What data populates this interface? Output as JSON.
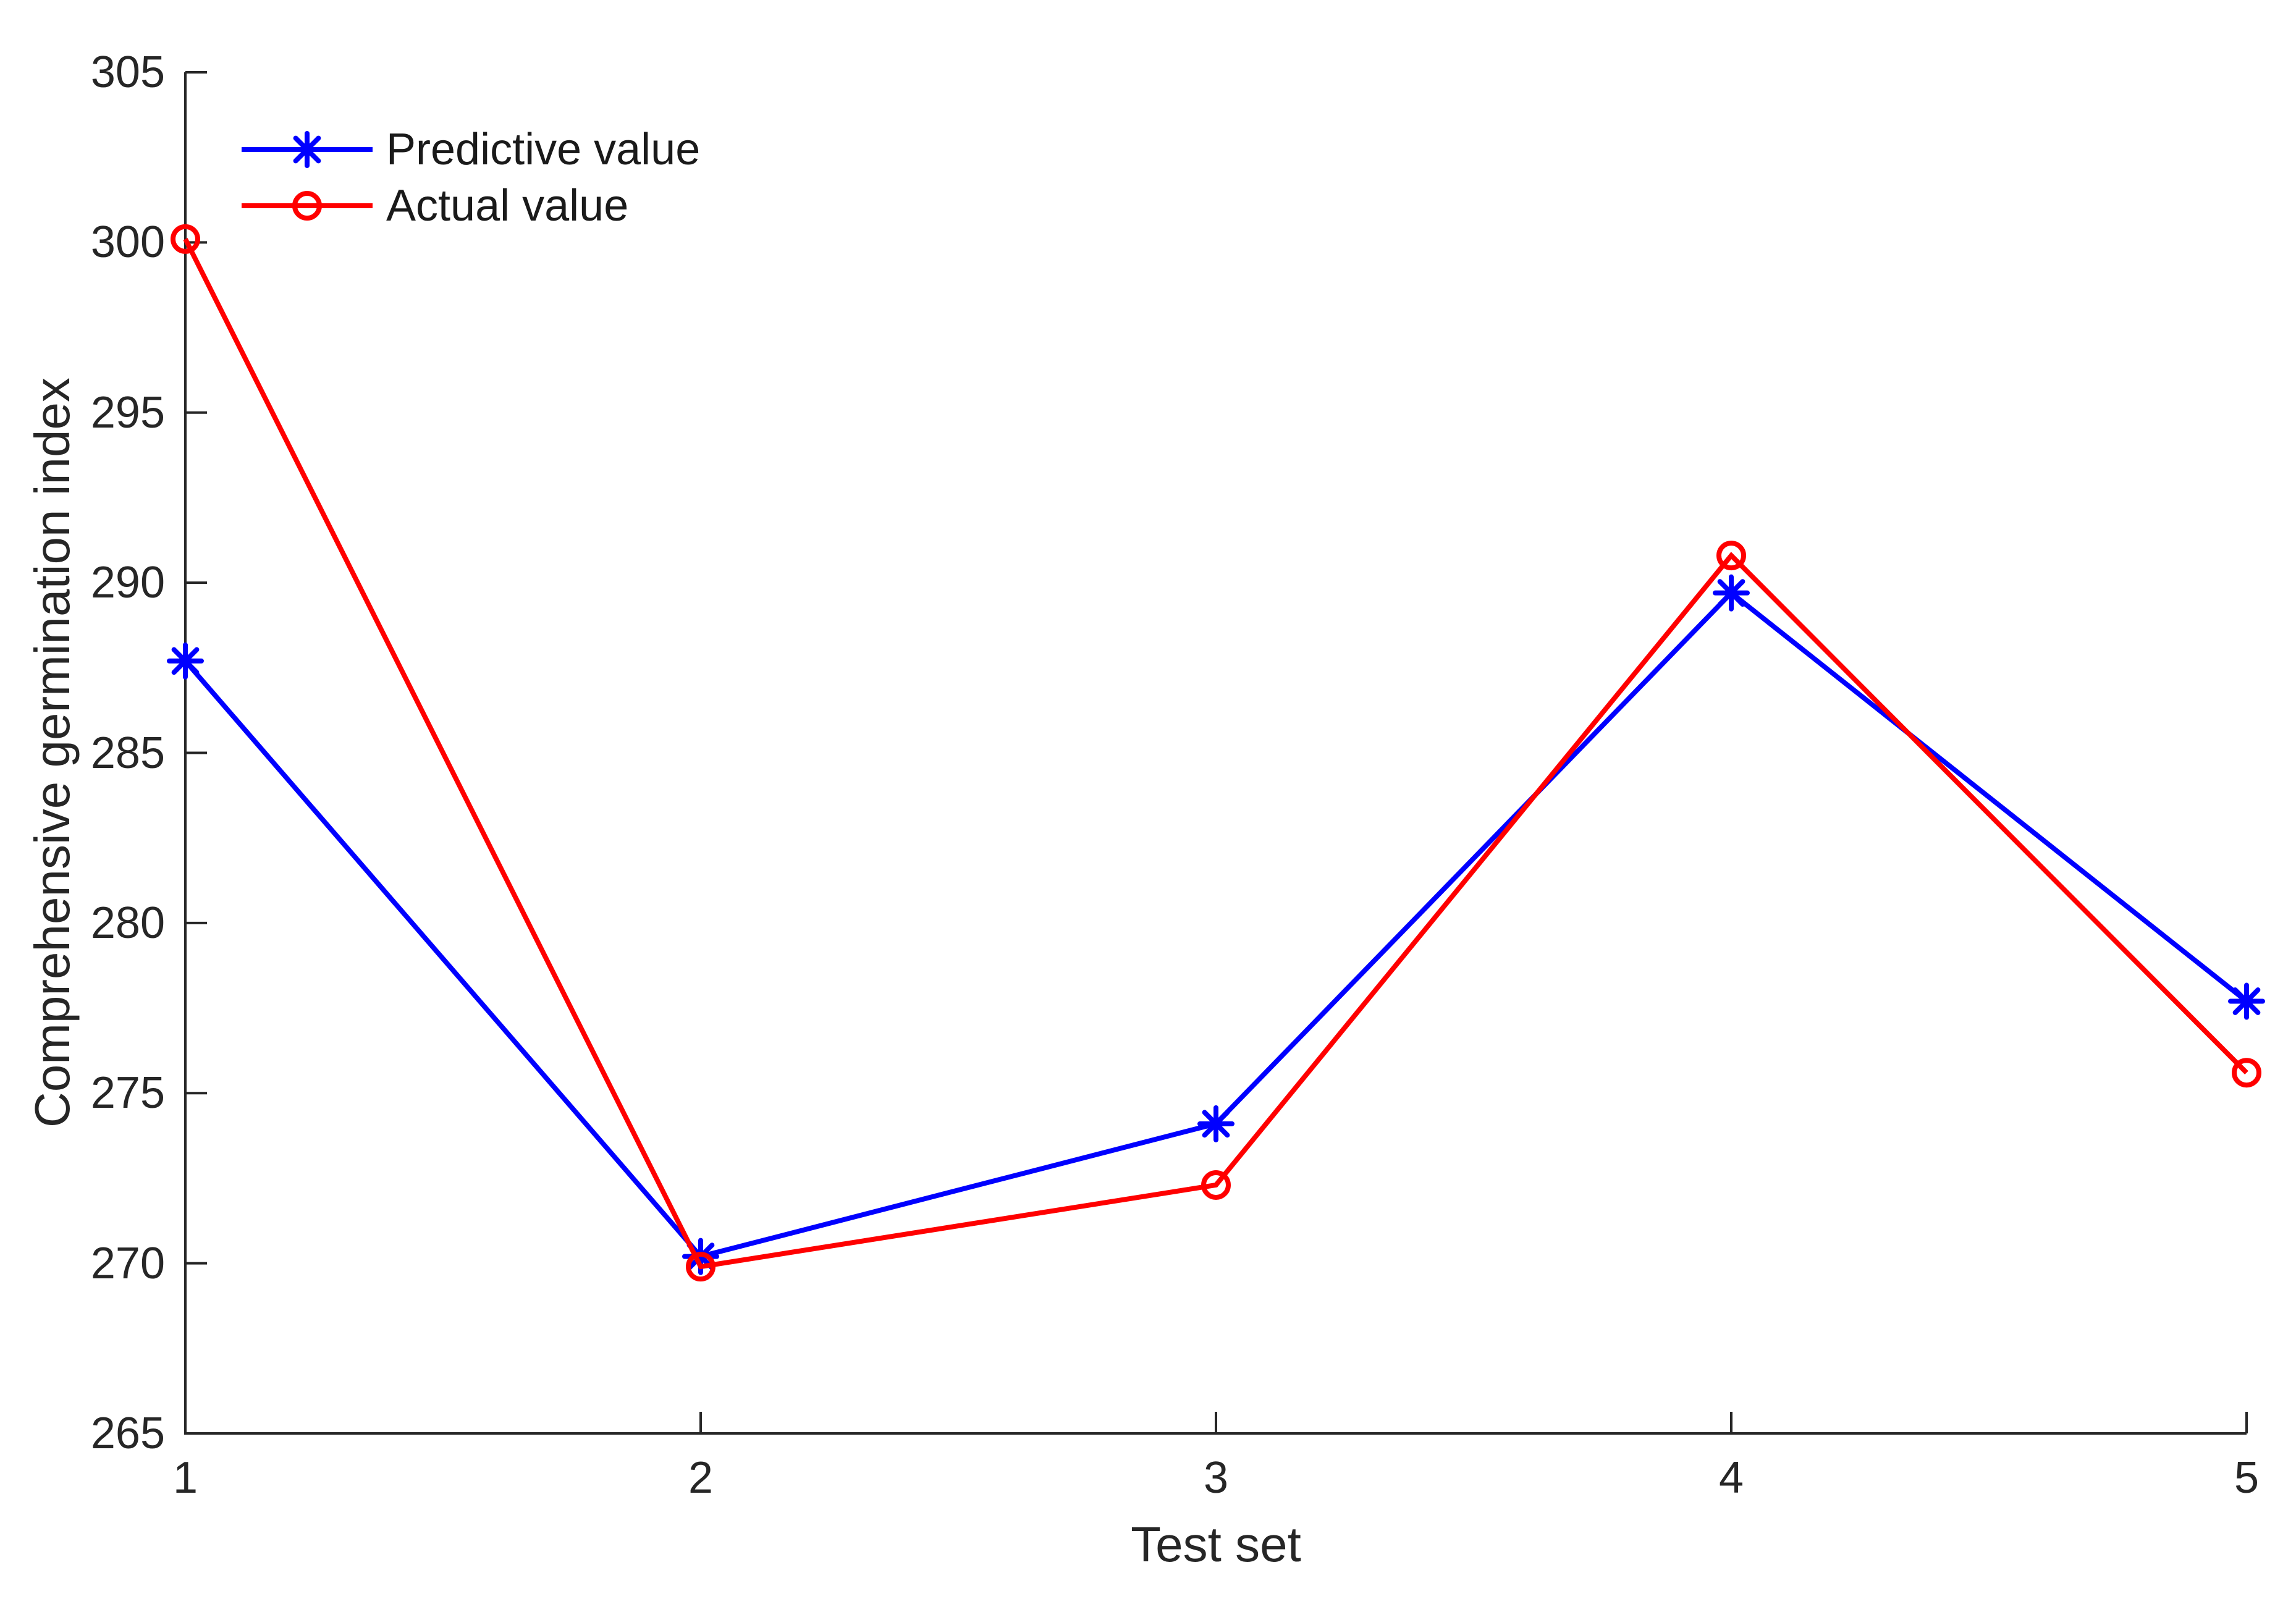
{
  "chart_data": {
    "type": "line",
    "title": "",
    "xlabel": "Test set",
    "ylabel": "Comprehensive germination index",
    "x": [
      1,
      2,
      3,
      4,
      5
    ],
    "xlim": [
      1,
      5
    ],
    "ylim": [
      265,
      305
    ],
    "xticks": [
      1,
      2,
      3,
      4,
      5
    ],
    "yticks": [
      265,
      270,
      275,
      280,
      285,
      290,
      295,
      300,
      305
    ],
    "grid": false,
    "legend_position": "upper-left-inside",
    "axis_color": "#262626",
    "series": [
      {
        "name": "Predictive value",
        "color": "#0000ff",
        "marker": "asterisk",
        "values": [
          287.7,
          270.2,
          274.1,
          289.7,
          277.7
        ]
      },
      {
        "name": "Actual value",
        "color": "#ff0000",
        "marker": "circle",
        "values": [
          300.1,
          269.9,
          272.3,
          290.8,
          275.6
        ]
      }
    ]
  }
}
